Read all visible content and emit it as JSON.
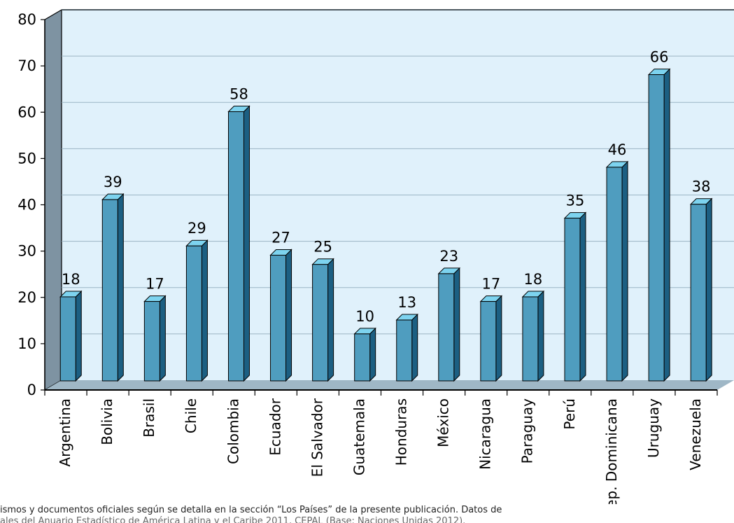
{
  "chart_data": {
    "type": "bar",
    "title": "",
    "xlabel": "",
    "ylabel": "",
    "ylim": [
      0,
      80
    ],
    "y_ticks": [
      "0",
      "10",
      "20",
      "30",
      "40",
      "50",
      "60",
      "70",
      "80"
    ],
    "grid": true,
    "legend": "none",
    "style": "3d",
    "categories": [
      "Argentina",
      "Bolivia",
      "Brasil",
      "Chile",
      "Colombia",
      "Ecuador",
      "El Salvador",
      "Guatemala",
      "Honduras",
      "México",
      "Nicaragua",
      "Paraguay",
      "Perú",
      "Rep. Dominicana",
      "Uruguay",
      "Venezuela"
    ],
    "values": [
      18,
      39,
      17,
      29,
      58,
      27,
      25,
      10,
      13,
      23,
      17,
      18,
      35,
      46,
      66,
      38
    ],
    "value_labels": [
      "18",
      "39",
      "17",
      "29",
      "58",
      "27",
      "25",
      "10",
      "13",
      "23",
      "17",
      "18",
      "35",
      "46",
      "66",
      "38"
    ],
    "colors": {
      "bar_front": "#4f9dbf",
      "bar_side": "#1c5f82",
      "bar_top": "#7dd3ef",
      "plot_background": "#e0f1fb",
      "left_wall": "#7e93a2",
      "floor": "#9fb7c6",
      "grid": "#9bb5c4"
    }
  },
  "footnote": {
    "line1": "ismos y documentos oficiales según se detalla en la sección “Los Países” de la presente publicación. Datos de",
    "line2": "ales del Anuario Estadístico de América Latina y el Caribe 2011, CEPAL (Base: Naciones Unidas 2012)."
  }
}
